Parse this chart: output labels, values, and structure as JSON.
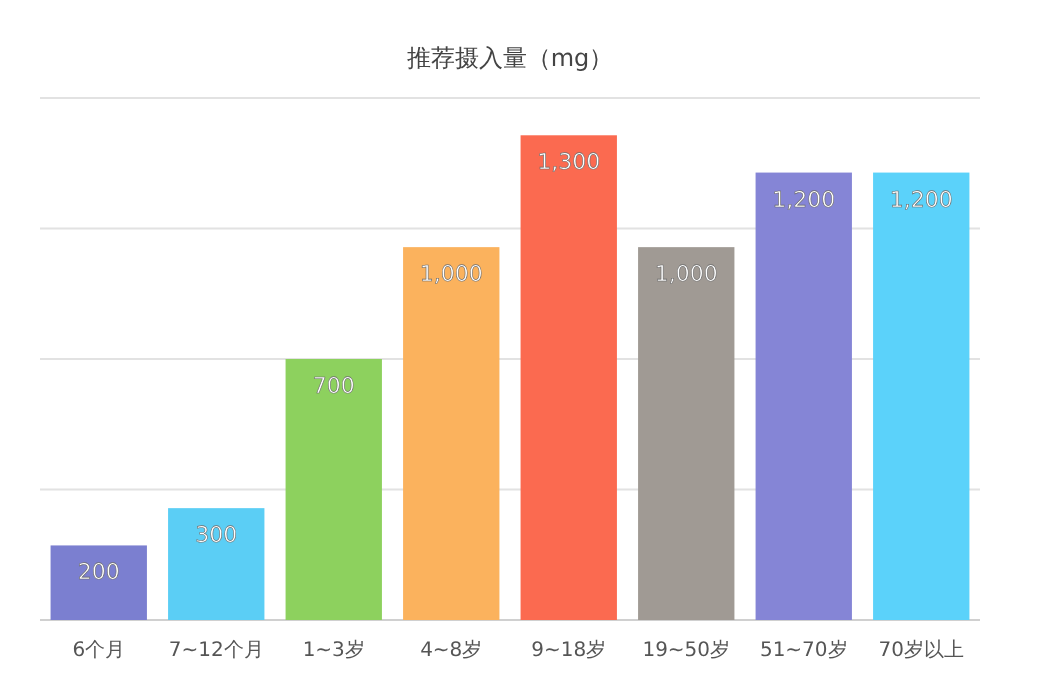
{
  "chart_data": {
    "type": "bar",
    "title": "推荐摄入量（mg）",
    "categories": [
      "6个月",
      "7~12个月",
      "1~3岁",
      "4~8岁",
      "9~18岁",
      "19~50岁",
      "51~70岁",
      "70岁以上"
    ],
    "values": [
      200,
      300,
      700,
      1000,
      1300,
      1000,
      1200,
      1200
    ],
    "value_labels": [
      "200",
      "300",
      "700",
      "1,000",
      "1,300",
      "1,000",
      "1,200",
      "1,200"
    ],
    "colors": [
      "#7b7fd0",
      "#5bcef5",
      "#8dd15e",
      "#fbb25d",
      "#fb6a50",
      "#a09a94",
      "#8585d6",
      "#5bd2fa"
    ],
    "ylim": [
      0,
      1400
    ],
    "yticks": [
      {
        "value": 0,
        "label": null
      },
      {
        "value": 350,
        "label": null
      },
      {
        "value": 700,
        "label": null
      },
      {
        "value": 1050,
        "label": null
      },
      {
        "value": 1400,
        "label": null
      }
    ],
    "grid": "y",
    "tick_labels": "x"
  }
}
